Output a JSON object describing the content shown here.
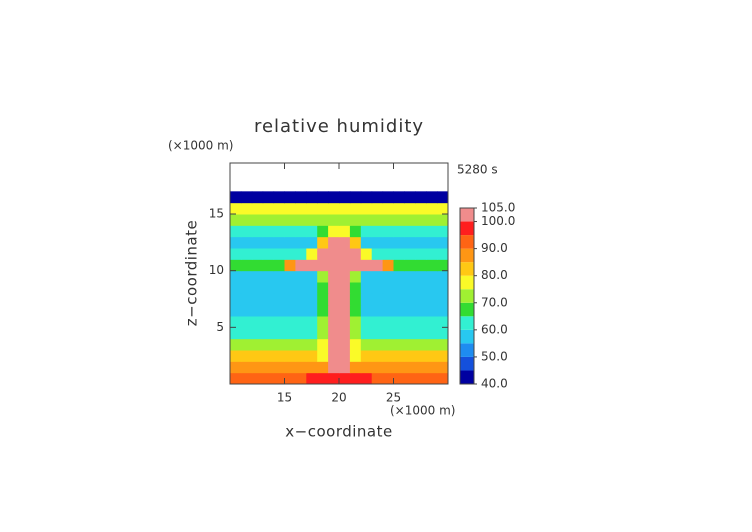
{
  "chart_data": {
    "type": "contour",
    "title": "relative humidity",
    "time_label": "5280 s",
    "x_unit": "(×1000 m)",
    "y_unit": "(×1000 m)",
    "xlabel": "x−coordinate",
    "ylabel": "z−coordinate",
    "xlim": [
      10,
      30
    ],
    "ylim": [
      0,
      19.5
    ],
    "xticks": [
      15,
      20,
      25
    ],
    "yticks": [
      5,
      10,
      15
    ],
    "x": [
      10.5,
      11.5,
      12.5,
      13.5,
      14.5,
      15.5,
      16.5,
      17.5,
      18.5,
      19.5,
      20.5,
      21.5,
      22.5,
      23.5,
      24.5,
      25.5,
      26.5,
      27.5,
      28.5,
      29.5
    ],
    "y": [
      0.5,
      1.5,
      2.5,
      3.5,
      4.5,
      5.5,
      6.5,
      7.5,
      8.5,
      9.5,
      10.5,
      11.5,
      12.5,
      13.5,
      14.5,
      15.5,
      16.5
    ],
    "z": [
      [
        90,
        90,
        90,
        90,
        90,
        90,
        90,
        97,
        97,
        97,
        97,
        97,
        97,
        90,
        90,
        90,
        90,
        90,
        90,
        90
      ],
      [
        86,
        86,
        86,
        86,
        86,
        86,
        86,
        86,
        86,
        102,
        102,
        86,
        86,
        86,
        86,
        86,
        86,
        86,
        86,
        86
      ],
      [
        82,
        82,
        82,
        82,
        82,
        82,
        82,
        82,
        78,
        102,
        102,
        78,
        82,
        82,
        82,
        82,
        82,
        82,
        82,
        82
      ],
      [
        72,
        72,
        72,
        72,
        72,
        72,
        72,
        72,
        76,
        102,
        102,
        76,
        72,
        72,
        72,
        72,
        72,
        72,
        72,
        72
      ],
      [
        64,
        64,
        64,
        64,
        64,
        64,
        64,
        64,
        72,
        102,
        102,
        72,
        64,
        64,
        64,
        64,
        64,
        64,
        64,
        64
      ],
      [
        60,
        60,
        60,
        60,
        60,
        60,
        60,
        60,
        70,
        102,
        102,
        70,
        60,
        60,
        60,
        60,
        60,
        60,
        60,
        60
      ],
      [
        58,
        58,
        58,
        58,
        58,
        58,
        58,
        58,
        68,
        102,
        102,
        68,
        58,
        58,
        58,
        58,
        58,
        58,
        58,
        58
      ],
      [
        57,
        57,
        57,
        57,
        57,
        57,
        57,
        57,
        68,
        102,
        102,
        68,
        57,
        57,
        57,
        57,
        57,
        57,
        57,
        57
      ],
      [
        57,
        57,
        57,
        57,
        57,
        57,
        57,
        57,
        68,
        102,
        102,
        68,
        57,
        57,
        57,
        57,
        57,
        57,
        57,
        57
      ],
      [
        58,
        58,
        58,
        58,
        58,
        58,
        58,
        58,
        70,
        102,
        102,
        70,
        58,
        58,
        58,
        58,
        58,
        58,
        58,
        58
      ],
      [
        66,
        66,
        66,
        66,
        66,
        85,
        102,
        102,
        102,
        102,
        102,
        102,
        102,
        102,
        85,
        66,
        66,
        66,
        66,
        66
      ],
      [
        60,
        60,
        60,
        60,
        60,
        60,
        60,
        75,
        102,
        102,
        102,
        102,
        75,
        60,
        60,
        60,
        60,
        60,
        60,
        60
      ],
      [
        58,
        58,
        58,
        58,
        58,
        58,
        58,
        58,
        80,
        102,
        102,
        80,
        58,
        58,
        58,
        58,
        58,
        58,
        58,
        58
      ],
      [
        62,
        62,
        62,
        62,
        62,
        62,
        62,
        62,
        68,
        75,
        75,
        68,
        62,
        62,
        62,
        62,
        62,
        62,
        62,
        62
      ],
      [
        70,
        70,
        70,
        70,
        70,
        70,
        70,
        70,
        70,
        70,
        70,
        70,
        70,
        70,
        70,
        70,
        70,
        70,
        70,
        70
      ],
      [
        78,
        78,
        78,
        78,
        78,
        78,
        78,
        78,
        78,
        78,
        78,
        78,
        78,
        78,
        78,
        78,
        78,
        78,
        78,
        78
      ],
      [
        44,
        44,
        44,
        44,
        44,
        44,
        44,
        44,
        44,
        44,
        44,
        44,
        44,
        44,
        44,
        44,
        44,
        44,
        44,
        44
      ]
    ],
    "levels": [
      40,
      45,
      50,
      55,
      60,
      65,
      70,
      75,
      80,
      85,
      90,
      95,
      100,
      105
    ],
    "colors": [
      "#0000a0",
      "#1450dc",
      "#1e8cf0",
      "#28c8f0",
      "#32f0d2",
      "#32dc32",
      "#a0f032",
      "#fafa28",
      "#ffc814",
      "#ff9614",
      "#ff6414",
      "#ff1e1e",
      "#f08c8c"
    ],
    "cticks": [
      {
        "value": 40,
        "label": "40.0"
      },
      {
        "value": 50,
        "label": "50.0"
      },
      {
        "value": 60,
        "label": "60.0"
      },
      {
        "value": 70,
        "label": "70.0"
      },
      {
        "value": 80,
        "label": "80.0"
      },
      {
        "value": 90,
        "label": "90.0"
      },
      {
        "value": 100,
        "label": "100.0"
      },
      {
        "value": 105,
        "label": "105.0"
      }
    ]
  }
}
